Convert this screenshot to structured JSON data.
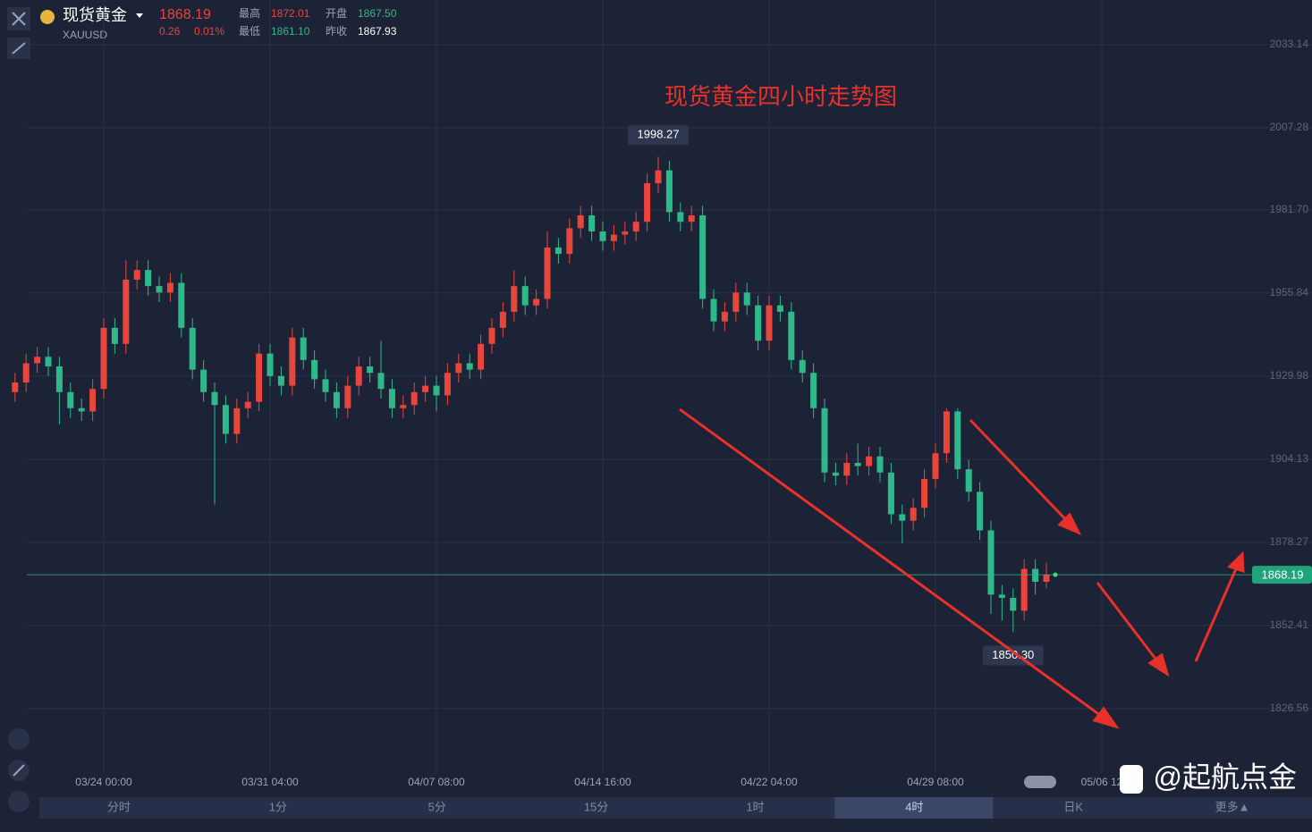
{
  "quote": {
    "name": "现货黄金",
    "symbol": "XAUUSD",
    "price": 1868.19,
    "change": 0.26,
    "change_pct": {
      "value": 0.01,
      "label": "0.01%"
    },
    "high_label": "最高",
    "high": 1872.01,
    "open_label": "开盘",
    "open": {
      "value": 1867.5,
      "label": "1867.50"
    },
    "low_label": "最低",
    "low": {
      "value": 1861.1,
      "label": "1861.10"
    },
    "prev_label": "昨收",
    "prev_close": 1867.93
  },
  "tabs": [
    "分时",
    "1分",
    "5分",
    "15分",
    "1时",
    "4时",
    "日K",
    "更多▲"
  ],
  "active_tab": "4时",
  "watermark": "@起航点金",
  "chart_data": {
    "type": "candlestick",
    "title": "现货黄金四小时走势图",
    "up_color": "#e8453c",
    "down_color": "#2fb889",
    "grid": true,
    "ylim": [
      1806.5,
      2047.0
    ],
    "yticks": [
      2033.14,
      2007.28,
      {
        "value": 1981.7,
        "label": "1981.70"
      },
      1955.84,
      1929.98,
      1904.13,
      1878.27,
      1852.41,
      1826.56
    ],
    "categories": [
      null,
      null,
      null,
      null,
      null,
      null,
      null,
      null,
      "03/24 00:00",
      null,
      null,
      null,
      null,
      null,
      null,
      null,
      null,
      null,
      null,
      null,
      null,
      null,
      null,
      "03/31 04:00",
      null,
      null,
      null,
      null,
      null,
      null,
      null,
      null,
      null,
      null,
      null,
      null,
      null,
      null,
      "04/07 08:00",
      null,
      null,
      null,
      null,
      null,
      null,
      null,
      null,
      null,
      null,
      null,
      null,
      null,
      null,
      "04/14 16:00",
      null,
      null,
      null,
      null,
      null,
      null,
      null,
      null,
      null,
      null,
      null,
      null,
      null,
      null,
      "04/22 04:00",
      null,
      null,
      null,
      null,
      null,
      null,
      null,
      null,
      null,
      null,
      null,
      null,
      null,
      null,
      "04/29 08:00",
      null,
      null,
      null,
      null,
      null,
      null,
      null,
      null,
      null,
      null,
      null,
      null,
      null,
      null,
      "05/06 12"
    ],
    "open": [
      1925,
      1928,
      1934,
      1936,
      1933,
      1925,
      1920,
      1919,
      1926,
      1945,
      1940,
      1960,
      1963,
      1958,
      1956,
      1959,
      1945,
      1932,
      1925,
      1921,
      1912,
      1920,
      1922,
      1937,
      1930,
      1927,
      1942,
      1935,
      1929,
      1925,
      1920,
      1927,
      1933,
      1931,
      1926,
      1920,
      1921,
      1925,
      1927,
      1924,
      1931,
      1934,
      1932,
      1940,
      1945,
      1950,
      1958,
      1952,
      1954,
      1970,
      1968,
      1976,
      1980,
      1975,
      1972,
      1974,
      1975,
      1978,
      1990,
      1994,
      1981,
      1978,
      1980,
      1954,
      1947,
      1950,
      1956,
      1952,
      1941,
      1952,
      1950,
      1935,
      1931,
      1920,
      1900,
      1899,
      1903,
      1902,
      1905,
      1900,
      1887,
      1885,
      1889,
      1898,
      1906,
      1919,
      1901,
      1894,
      1882,
      1862,
      1861,
      1857,
      1870,
      1866,
      null,
      null,
      null,
      null,
      null
    ],
    "high": [
      1931,
      1937,
      1939,
      1939,
      1936,
      1928,
      1923,
      1929,
      1948,
      1948,
      1966,
      1966,
      1966,
      1961,
      1962,
      1962,
      1948,
      1935,
      1928,
      1924,
      1923,
      1925,
      1940,
      1940,
      1933,
      1945,
      1945,
      1938,
      1932,
      1928,
      1930,
      1936,
      1936,
      1941,
      1929,
      1924,
      1928,
      1930,
      1930,
      1934,
      1937,
      1937,
      1943,
      1948,
      1953,
      1963,
      1961,
      1957,
      1975,
      1973,
      1979,
      1983,
      1983,
      1978,
      1977,
      1978,
      1981,
      1993,
      1998.27,
      1997,
      1984,
      1983,
      1983,
      1957,
      1953,
      1959,
      1959,
      1955,
      1955,
      1955,
      1953,
      1938,
      1934,
      1923,
      1903,
      1906,
      1909,
      1908,
      1908,
      1903,
      1890,
      1892,
      1901,
      1909,
      1920,
      1920,
      1904,
      1897,
      1885,
      1865,
      1864,
      1873,
      1873,
      1872,
      null,
      null,
      null,
      null,
      null
    ],
    "low": [
      1922,
      1925,
      1931,
      1930,
      1915,
      1917,
      1916,
      1916,
      1923,
      1937,
      1937,
      1957,
      1955,
      1953,
      1953,
      1942,
      1929,
      1922,
      1890,
      1909,
      1909,
      1917,
      1919,
      1927,
      1924,
      1924,
      1932,
      1926,
      1922,
      1917,
      1917,
      1924,
      1928,
      1923,
      1917,
      1917,
      1918,
      1922,
      1919,
      1921,
      1928,
      1929,
      1929,
      1937,
      1942,
      1947,
      1949,
      1949,
      1951,
      1965,
      1965,
      1973,
      1972,
      1969,
      1969,
      1971,
      1972,
      1975,
      1987,
      1978,
      1975,
      1975,
      1951,
      1944,
      1944,
      1947,
      1949,
      1938,
      1938,
      1947,
      1932,
      1928,
      1917,
      1897,
      1896,
      1896,
      1899,
      1899,
      1897,
      1884,
      1878,
      1882,
      1886,
      1895,
      1903,
      1898,
      1891,
      1879,
      1856,
      1854,
      1850.3,
      1854,
      1862,
      1864,
      null,
      null,
      null,
      null,
      null
    ],
    "close": [
      1928,
      1934,
      1936,
      1933,
      1925,
      1920,
      1919,
      1926,
      1945,
      1940,
      1960,
      1963,
      1958,
      1956,
      1959,
      1945,
      1932,
      1925,
      1921,
      1912,
      1920,
      1922,
      1937,
      1930,
      1927,
      1942,
      1935,
      1929,
      1925,
      1920,
      1927,
      1933,
      1931,
      1926,
      1920,
      1921,
      1925,
      1927,
      1924,
      1931,
      1934,
      1932,
      1940,
      1945,
      1950,
      1958,
      1952,
      1954,
      1970,
      1968,
      1976,
      1980,
      1975,
      1972,
      1974,
      1975,
      1978,
      1990,
      1994,
      1981,
      1978,
      1980,
      1954,
      1947,
      1950,
      1956,
      1952,
      1941,
      1952,
      1950,
      1935,
      1931,
      1920,
      1900,
      1899,
      1903,
      1902,
      1905,
      1900,
      1887,
      1885,
      1889,
      1898,
      1906,
      1919,
      1901,
      1894,
      1882,
      1862,
      1861,
      1857,
      1870,
      1866,
      1868.19,
      null,
      null,
      null,
      null,
      null
    ],
    "min_label": {
      "value": 1850.3,
      "label": "1850.30"
    }
  }
}
